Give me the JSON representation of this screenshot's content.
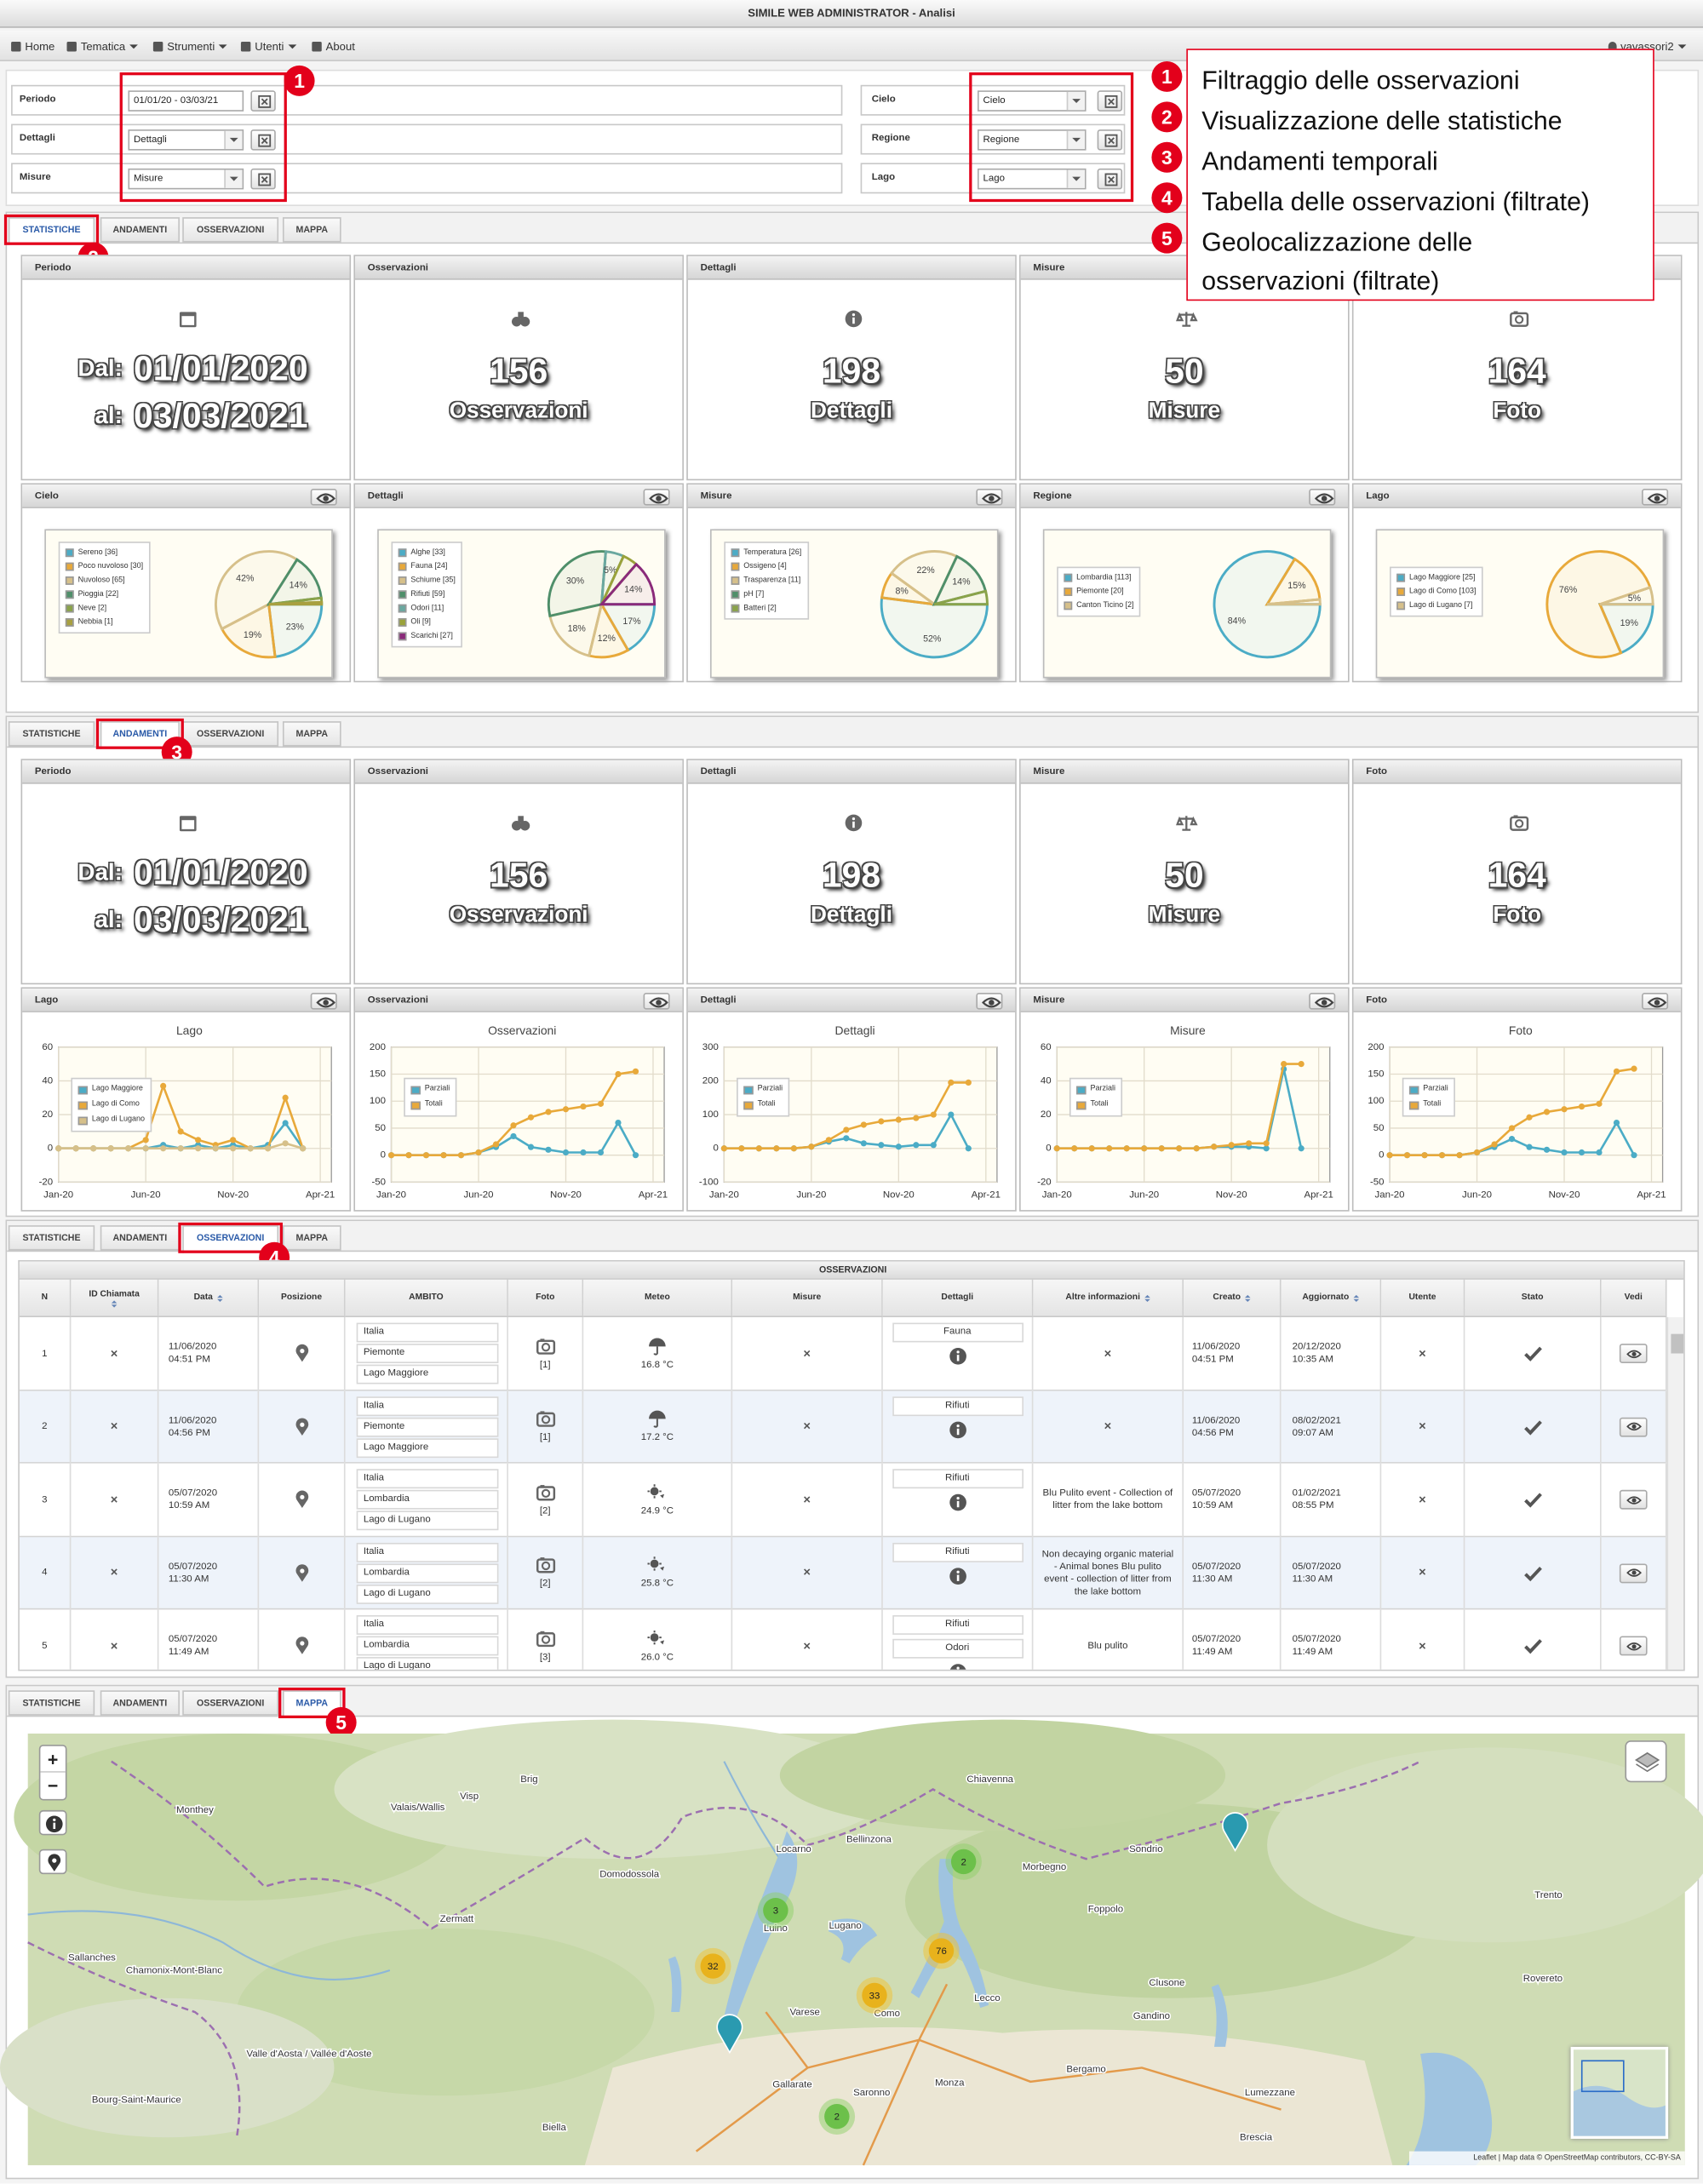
{
  "header": {
    "title": "SIMILE WEB ADMINISTRATOR - Analisi"
  },
  "menu": {
    "items": [
      "Home",
      "Tematica",
      "Strumenti",
      "Utenti",
      "About"
    ],
    "user": "vavassori2"
  },
  "filters": {
    "left": [
      {
        "label": "Periodo",
        "value": "01/01/20 - 03/03/21"
      },
      {
        "label": "Dettagli",
        "value": "Dettagli"
      },
      {
        "label": "Misure",
        "value": "Misure"
      }
    ],
    "right": [
      {
        "label": "Cielo",
        "value": "Cielo"
      },
      {
        "label": "Regione",
        "value": "Regione"
      },
      {
        "label": "Lago",
        "value": "Lago"
      }
    ]
  },
  "callouts": [
    {
      "n": "1",
      "text": "Filtraggio delle osservazioni"
    },
    {
      "n": "2",
      "text": "Visualizzazione delle statistiche"
    },
    {
      "n": "3",
      "text": "Andamenti temporali"
    },
    {
      "n": "4",
      "text": "Tabella delle osservazioni (filtrate)"
    },
    {
      "n": "5",
      "text": "Geolocalizzazione delle osservazioni (filtrate)"
    }
  ],
  "tabs": [
    "STATISTICHE",
    "ANDAMENTI",
    "OSSERVAZIONI",
    "MAPPA"
  ],
  "summary": {
    "period": {
      "title": "Periodo",
      "from_label": "Dal:",
      "from": "01/01/2020",
      "to_label": "al:",
      "to": "03/03/2021"
    },
    "cards": [
      {
        "title": "Osservazioni",
        "value": 156,
        "label": "Osservazioni"
      },
      {
        "title": "Dettagli",
        "value": 198,
        "label": "Dettagli"
      },
      {
        "title": "Misure",
        "value": 50,
        "label": "Misure"
      },
      {
        "title": "Foto",
        "value": 164,
        "label": "Foto"
      }
    ]
  },
  "pies": [
    {
      "title": "Cielo",
      "slices": [
        {
          "label": "Sereno [36]",
          "value": 36,
          "color": "#4bacc6",
          "pct": "23%"
        },
        {
          "label": "Poco nuvoloso [30]",
          "value": 30,
          "color": "#e8a93a",
          "pct": "19%"
        },
        {
          "label": "Nuvoloso [65]",
          "value": 65,
          "color": "#d6c08a",
          "pct": "42%"
        },
        {
          "label": "Pioggia [22]",
          "value": 22,
          "color": "#4f8f6a",
          "pct": "14%"
        },
        {
          "label": "Neve [2]",
          "value": 2,
          "color": "#8aa34a"
        },
        {
          "label": "Nebbia [1]",
          "value": 1,
          "color": "#a8a040"
        }
      ]
    },
    {
      "title": "Dettagli",
      "slices": [
        {
          "label": "Alghe [33]",
          "value": 33,
          "color": "#4bacc6",
          "pct": "17%"
        },
        {
          "label": "Fauna [24]",
          "value": 24,
          "color": "#e8a93a",
          "pct": "12%"
        },
        {
          "label": "Schiume [35]",
          "value": 35,
          "color": "#d6c08a",
          "pct": "18%"
        },
        {
          "label": "Rifiuti [59]",
          "value": 59,
          "color": "#4f8f6a",
          "pct": "30%"
        },
        {
          "label": "Odori [11]",
          "value": 11,
          "color": "#6aa8a0",
          "pct": "5%"
        },
        {
          "label": "Oli [9]",
          "value": 9,
          "color": "#9aa23a"
        },
        {
          "label": "Scarichi [27]",
          "value": 27,
          "color": "#8a2a7a",
          "pct": "14%"
        }
      ]
    },
    {
      "title": "Misure",
      "slices": [
        {
          "label": "Temperatura [26]",
          "value": 26,
          "color": "#4bacc6",
          "pct": "52%"
        },
        {
          "label": "Ossigeno [4]",
          "value": 4,
          "color": "#e8a93a",
          "pct": "8%"
        },
        {
          "label": "Trasparenza [11]",
          "value": 11,
          "color": "#d6c08a",
          "pct": "22%"
        },
        {
          "label": "pH [7]",
          "value": 7,
          "color": "#4f8f6a",
          "pct": "14%"
        },
        {
          "label": "Batteri [2]",
          "value": 2,
          "color": "#8aa34a"
        }
      ]
    },
    {
      "title": "Regione",
      "slices": [
        {
          "label": "Lombardia [113]",
          "value": 113,
          "color": "#4bacc6",
          "pct": "84%"
        },
        {
          "label": "Piemonte [20]",
          "value": 20,
          "color": "#e8a93a",
          "pct": "15%"
        },
        {
          "label": "Canton Ticino [2]",
          "value": 2,
          "color": "#d6c08a"
        }
      ]
    },
    {
      "title": "Lago",
      "slices": [
        {
          "label": "Lago Maggiore [25]",
          "value": 25,
          "color": "#4bacc6",
          "pct": "19%"
        },
        {
          "label": "Lago di Como [103]",
          "value": 103,
          "color": "#e8a93a",
          "pct": "76%"
        },
        {
          "label": "Lago di Lugano [7]",
          "value": 7,
          "color": "#d6c08a",
          "pct": "5%"
        }
      ]
    }
  ],
  "trends": [
    {
      "title": "Lago",
      "chart_title": "Lago",
      "x": [
        0,
        1,
        2,
        3,
        4,
        5,
        6,
        7,
        8,
        9,
        10,
        11,
        12,
        13,
        14
      ],
      "xlim": [
        0,
        15
      ],
      "xticks": [
        {
          "value": 0,
          "label": "Jan-20"
        },
        {
          "value": 5,
          "label": "Jun-20"
        },
        {
          "value": 10,
          "label": "Nov-20"
        },
        {
          "value": 15,
          "label": "Apr-21"
        }
      ],
      "ylim": [
        -20,
        60
      ],
      "yticks": [
        -20,
        0,
        20,
        40,
        60
      ],
      "series": [
        {
          "name": "Lago Maggiore",
          "color": "#4bacc6",
          "values": [
            0,
            0,
            0,
            0,
            0,
            0,
            2,
            0,
            2,
            0,
            2,
            0,
            2,
            15,
            0
          ]
        },
        {
          "name": "Lago di Como",
          "color": "#e8a93a",
          "values": [
            0,
            0,
            0,
            0,
            0,
            5,
            37,
            10,
            5,
            2,
            5,
            0,
            0,
            30,
            0
          ]
        },
        {
          "name": "Lago di Lugano",
          "color": "#d6c08a",
          "values": [
            0,
            0,
            0,
            0,
            0,
            0,
            0,
            0,
            0,
            0,
            0,
            0,
            0,
            3,
            0
          ]
        }
      ]
    },
    {
      "title": "Osservazioni",
      "chart_title": "Osservazioni",
      "x": [
        0,
        1,
        2,
        3,
        4,
        5,
        6,
        7,
        8,
        9,
        10,
        11,
        12,
        13,
        14
      ],
      "xlim": [
        0,
        15
      ],
      "xticks": [
        {
          "value": 0,
          "label": "Jan-20"
        },
        {
          "value": 5,
          "label": "Jun-20"
        },
        {
          "value": 10,
          "label": "Nov-20"
        },
        {
          "value": 15,
          "label": "Apr-21"
        }
      ],
      "ylim": [
        -50,
        200
      ],
      "yticks": [
        -50,
        0,
        50,
        100,
        150,
        200
      ],
      "series": [
        {
          "name": "Parziali",
          "color": "#4bacc6",
          "values": [
            0,
            0,
            0,
            0,
            0,
            5,
            15,
            35,
            15,
            10,
            5,
            5,
            5,
            60,
            0
          ]
        },
        {
          "name": "Totali",
          "color": "#e8a93a",
          "values": [
            0,
            0,
            0,
            0,
            0,
            5,
            20,
            55,
            70,
            80,
            85,
            90,
            95,
            150,
            155
          ]
        }
      ]
    },
    {
      "title": "Dettagli",
      "chart_title": "Dettagli",
      "x": [
        0,
        1,
        2,
        3,
        4,
        5,
        6,
        7,
        8,
        9,
        10,
        11,
        12,
        13,
        14
      ],
      "xlim": [
        0,
        15
      ],
      "xticks": [
        {
          "value": 0,
          "label": "Jan-20"
        },
        {
          "value": 5,
          "label": "Jun-20"
        },
        {
          "value": 10,
          "label": "Nov-20"
        },
        {
          "value": 15,
          "label": "Apr-21"
        }
      ],
      "ylim": [
        -100,
        300
      ],
      "yticks": [
        -100,
        0,
        100,
        200,
        300
      ],
      "series": [
        {
          "name": "Parziali",
          "color": "#4bacc6",
          "values": [
            0,
            0,
            0,
            0,
            0,
            5,
            20,
            30,
            15,
            10,
            5,
            10,
            10,
            100,
            0
          ]
        },
        {
          "name": "Totali",
          "color": "#e8a93a",
          "values": [
            0,
            0,
            0,
            0,
            0,
            5,
            25,
            55,
            70,
            80,
            85,
            90,
            100,
            195,
            195
          ]
        }
      ]
    },
    {
      "title": "Misure",
      "chart_title": "Misure",
      "x": [
        0,
        1,
        2,
        3,
        4,
        5,
        6,
        7,
        8,
        9,
        10,
        11,
        12,
        13,
        14
      ],
      "xlim": [
        0,
        15
      ],
      "xticks": [
        {
          "value": 0,
          "label": "Jan-20"
        },
        {
          "value": 5,
          "label": "Jun-20"
        },
        {
          "value": 10,
          "label": "Nov-20"
        },
        {
          "value": 15,
          "label": "Apr-21"
        }
      ],
      "ylim": [
        -20,
        60
      ],
      "yticks": [
        -20,
        0,
        20,
        40,
        60
      ],
      "series": [
        {
          "name": "Parziali",
          "color": "#4bacc6",
          "values": [
            0,
            0,
            0,
            0,
            0,
            0,
            0,
            0,
            0,
            1,
            1,
            1,
            0,
            47,
            0
          ]
        },
        {
          "name": "Totali",
          "color": "#e8a93a",
          "values": [
            0,
            0,
            0,
            0,
            0,
            0,
            0,
            0,
            0,
            1,
            2,
            3,
            3,
            50,
            50
          ]
        }
      ]
    },
    {
      "title": "Foto",
      "chart_title": "Foto",
      "x": [
        0,
        1,
        2,
        3,
        4,
        5,
        6,
        7,
        8,
        9,
        10,
        11,
        12,
        13,
        14
      ],
      "xlim": [
        0,
        15
      ],
      "xticks": [
        {
          "value": 0,
          "label": "Jan-20"
        },
        {
          "value": 5,
          "label": "Jun-20"
        },
        {
          "value": 10,
          "label": "Nov-20"
        },
        {
          "value": 15,
          "label": "Apr-21"
        }
      ],
      "ylim": [
        -50,
        200
      ],
      "yticks": [
        -50,
        0,
        50,
        100,
        150,
        200
      ],
      "series": [
        {
          "name": "Parziali",
          "color": "#4bacc6",
          "values": [
            0,
            0,
            0,
            0,
            0,
            5,
            15,
            30,
            15,
            10,
            5,
            5,
            5,
            60,
            0
          ]
        },
        {
          "name": "Totali",
          "color": "#e8a93a",
          "values": [
            0,
            0,
            0,
            0,
            0,
            5,
            20,
            50,
            70,
            80,
            85,
            90,
            95,
            155,
            160
          ]
        }
      ]
    }
  ],
  "table": {
    "title": "OSSERVAZIONI",
    "columns": [
      "N",
      "ID Chiamata",
      "Data",
      "Posizione",
      "AMBITO",
      "Foto",
      "Meteo",
      "Misure",
      "Dettagli",
      "Altre informazioni",
      "Creato",
      "Aggiornato",
      "Utente",
      "Stato",
      "Vedi"
    ],
    "rows": [
      {
        "n": "1",
        "id": "×",
        "data": "11/06/2020 04:51 PM",
        "ambito": [
          "Italia",
          "Piemonte",
          "Lago Maggiore"
        ],
        "foto": "[1]",
        "meteo": "16.8 °C",
        "misure": "×",
        "dettagli": [
          "Fauna"
        ],
        "altre": "×",
        "creato": "11/06/2020 04:51 PM",
        "aggiornato": "20/12/2020 10:35 AM",
        "utente": "×"
      },
      {
        "n": "2",
        "id": "×",
        "data": "11/06/2020 04:56 PM",
        "ambito": [
          "Italia",
          "Piemonte",
          "Lago Maggiore"
        ],
        "foto": "[1]",
        "meteo": "17.2 °C",
        "misure": "×",
        "dettagli": [
          "Rifiuti"
        ],
        "altre": "×",
        "creato": "11/06/2020 04:56 PM",
        "aggiornato": "08/02/2021 09:07 AM",
        "utente": "×"
      },
      {
        "n": "3",
        "id": "×",
        "data": "05/07/2020 10:59 AM",
        "ambito": [
          "Italia",
          "Lombardia",
          "Lago di Lugano"
        ],
        "foto": "[2]",
        "meteo": "24.9 °C",
        "misure": "×",
        "dettagli": [
          "Rifiuti"
        ],
        "altre": "Blu Pulito event - Collection of litter from the lake bottom",
        "creato": "05/07/2020 10:59 AM",
        "aggiornato": "01/02/2021 08:55 PM",
        "utente": "×"
      },
      {
        "n": "4",
        "id": "×",
        "data": "05/07/2020 11:30 AM",
        "ambito": [
          "Italia",
          "Lombardia",
          "Lago di Lugano"
        ],
        "foto": "[2]",
        "meteo": "25.8 °C",
        "misure": "×",
        "dettagli": [
          "Rifiuti"
        ],
        "altre": "Non decaying organic material - Animal bones Blu pulito event - collection of litter from the lake bottom",
        "creato": "05/07/2020 11:30 AM",
        "aggiornato": "05/07/2020 11:30 AM",
        "utente": "×"
      },
      {
        "n": "5",
        "id": "×",
        "data": "05/07/2020 11:49 AM",
        "ambito": [
          "Italia",
          "Lombardia",
          "Lago di Lugano"
        ],
        "foto": "[3]",
        "meteo": "26.0 °C",
        "misure": "×",
        "dettagli": [
          "Rifiuti",
          "Odori"
        ],
        "altre": "Blu pulito",
        "creato": "05/07/2020 11:49 AM",
        "aggiornato": "05/07/2020 11:49 AM",
        "utente": "×"
      }
    ]
  },
  "map": {
    "controls": [
      "+",
      "−"
    ],
    "places": [
      "Brig",
      "Visp",
      "Valais/Wallis",
      "Monthey",
      "Zermatt",
      "Domodossola",
      "Locarno",
      "Bellinzona",
      "Chiavenna",
      "Sondrio",
      "Morbegno",
      "Lugano",
      "Luino",
      "Varese",
      "Como",
      "Lecco",
      "Bergamo",
      "Monza",
      "Biella",
      "Foppolo",
      "Trento",
      "Brescia",
      "Rovereto",
      "Clusone",
      "Chamonix-Mont-Blanc",
      "Sallanches",
      "Bourg-Saint-Maurice",
      "Valle d'Aosta / Vallée d'Aoste",
      "Gandino",
      "Lumezzane",
      "Gallarate",
      "Saronno"
    ],
    "clusters": [
      32,
      3,
      2,
      76,
      33,
      2
    ],
    "attribution": "Leaflet | Map data © OpenStreetMap contributors, CC-BY-SA"
  }
}
